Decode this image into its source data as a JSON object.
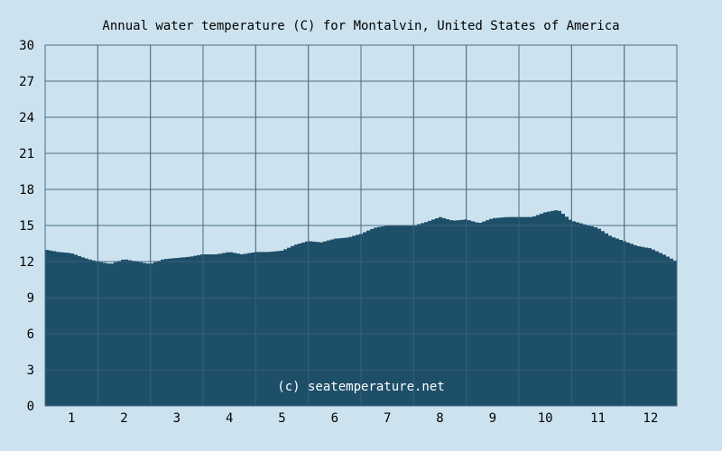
{
  "chart_data": {
    "type": "area",
    "title": "Annual water temperature (C) for Montalvin, United States of America",
    "xlabel": "",
    "ylabel": "",
    "ylim": [
      0,
      30
    ],
    "y_ticks": [
      "0",
      "3",
      "6",
      "9",
      "12",
      "15",
      "18",
      "21",
      "24",
      "27",
      "30"
    ],
    "x_ticks": [
      "1",
      "2",
      "3",
      "4",
      "5",
      "6",
      "7",
      "8",
      "9",
      "10",
      "11",
      "12"
    ],
    "grid": true,
    "legend": "none",
    "watermark": "(c) seatemperature.net",
    "colors": {
      "background": "#cce3ef",
      "plot_background": "#cce3ef",
      "fill": "#1e4f69",
      "grid": "#4b6b83"
    },
    "series": [
      {
        "x": [
          0,
          0.25,
          0.5,
          0.75,
          1,
          1.25,
          1.5,
          1.75,
          2,
          2.25,
          2.5,
          2.75,
          3,
          3.25,
          3.5,
          3.75,
          4,
          4.25,
          4.5,
          4.75,
          5,
          5.25,
          5.5,
          5.75,
          6,
          6.25,
          6.5,
          6.75,
          7,
          7.25,
          7.5,
          7.75,
          8,
          8.25,
          8.5,
          8.75,
          9,
          9.25,
          9.5,
          9.75,
          10,
          10.25,
          10.5,
          10.75,
          11,
          11.25,
          11.5,
          11.75,
          12
        ],
        "values": [
          13.0,
          12.8,
          12.7,
          12.3,
          12.0,
          11.8,
          12.2,
          12.0,
          11.8,
          12.2,
          12.3,
          12.4,
          12.6,
          12.6,
          12.8,
          12.6,
          12.8,
          12.8,
          12.9,
          13.4,
          13.7,
          13.6,
          13.9,
          14.0,
          14.3,
          14.8,
          15.0,
          15.0,
          15.0,
          15.3,
          15.7,
          15.4,
          15.5,
          15.2,
          15.6,
          15.7,
          15.7,
          15.7,
          16.1,
          16.3,
          15.4,
          15.1,
          14.8,
          14.1,
          13.7,
          13.3,
          13.1,
          12.6,
          12.0
        ]
      }
    ]
  }
}
